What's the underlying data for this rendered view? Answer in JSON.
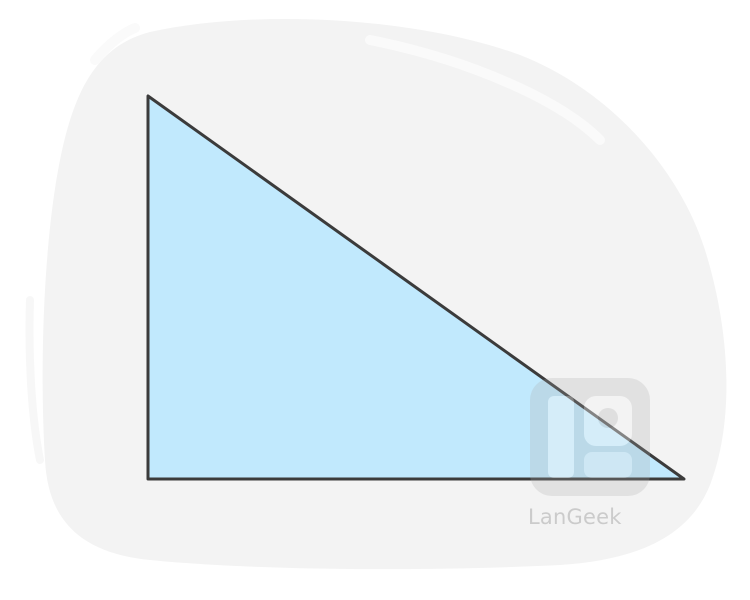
{
  "watermark": {
    "text": "LanGeek"
  },
  "colors": {
    "background_blob": "#f3f3f3",
    "triangle_fill": "#c1e9fd",
    "triangle_stroke": "#3b3b3b",
    "watermark": "#c9c9c9"
  }
}
